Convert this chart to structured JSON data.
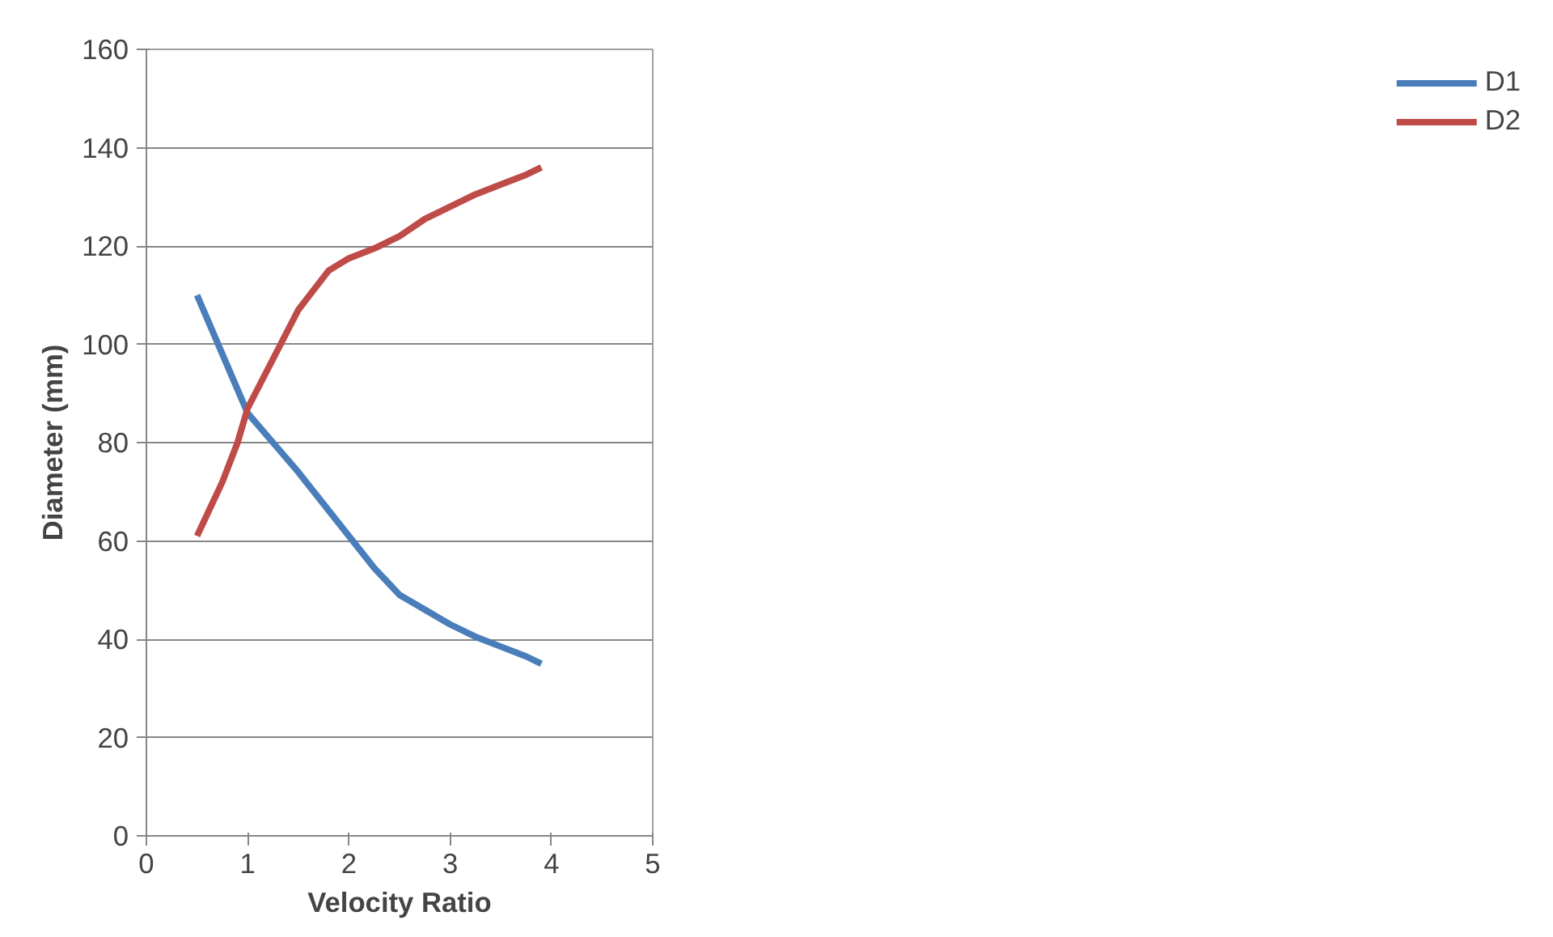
{
  "chart_data": {
    "type": "line",
    "xlabel": "Velocity Ratio",
    "ylabel": "Diameter (mm)",
    "xlim": [
      0,
      5
    ],
    "xticks": [
      0,
      1,
      2,
      3,
      4,
      5
    ],
    "ylim": [
      0,
      160
    ],
    "yticks": [
      0,
      20,
      40,
      60,
      80,
      100,
      120,
      140,
      160
    ],
    "grid": "y",
    "legend": "right",
    "marker": "none",
    "line_style": "solid",
    "series": [
      {
        "name": "D1",
        "color": "#4a7ebb",
        "x": [
          0.5,
          0.75,
          1,
          1.25,
          1.5,
          1.75,
          2,
          2.25,
          2.5,
          2.75,
          3,
          3.25,
          3.5,
          3.75,
          3.9
        ],
        "values": [
          110,
          98,
          86,
          80,
          74,
          67.5,
          61,
          54.5,
          49,
          46,
          43,
          40.5,
          38.5,
          36.5,
          35
        ]
      },
      {
        "name": "D2",
        "color": "#be4b48",
        "x": [
          0.5,
          0.75,
          0.9,
          1,
          1.25,
          1.5,
          1.65,
          1.8,
          2,
          2.25,
          2.5,
          2.75,
          3,
          3.25,
          3.5,
          3.75,
          3.9
        ],
        "values": [
          61,
          72,
          80,
          87,
          97,
          107,
          111,
          115,
          117.5,
          119.5,
          122,
          125.5,
          128,
          130.5,
          132.5,
          134.5,
          136
        ]
      }
    ]
  }
}
